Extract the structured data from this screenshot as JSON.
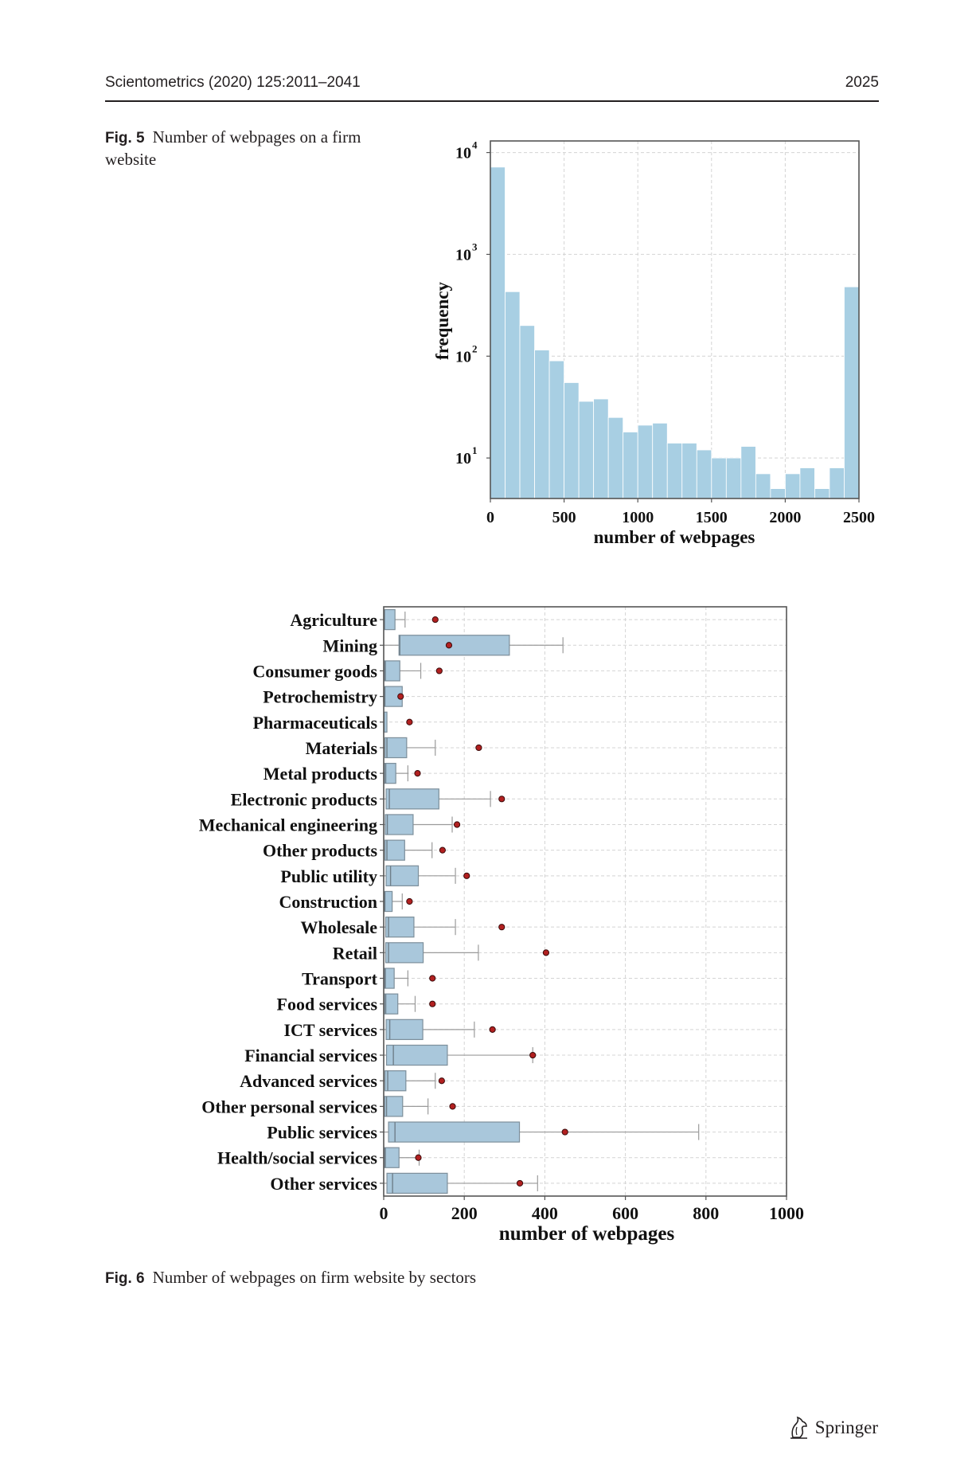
{
  "header": {
    "journal": "Scientometrics (2020) 125:2011–2041",
    "page": "2025"
  },
  "figures": [
    {
      "label": "Fig. 5",
      "caption": "Number of webpages on a firm website",
      "chart_data": {
        "type": "bar",
        "subtype": "histogram",
        "y_scale": "log",
        "bin_width": 100,
        "bins_start": [
          0,
          100,
          200,
          300,
          400,
          500,
          600,
          700,
          800,
          900,
          1000,
          1100,
          1200,
          1300,
          1400,
          1500,
          1600,
          1700,
          1800,
          1900,
          2000,
          2100,
          2200,
          2300,
          2400
        ],
        "values": [
          7200,
          430,
          200,
          115,
          90,
          55,
          36,
          38,
          25,
          18,
          21,
          22,
          14,
          14,
          12,
          10,
          10,
          13,
          7,
          5,
          7,
          8,
          5,
          8,
          480
        ],
        "xlabel": "number of webpages",
        "ylabel": "frequency",
        "xlim": [
          0,
          2500
        ],
        "ylim": [
          4,
          13000
        ],
        "x_ticks": [
          "0",
          "500",
          "1000",
          "1500",
          "2000",
          "2500"
        ],
        "y_ticks": [
          "10^1",
          "10^2",
          "10^3",
          "10^4"
        ],
        "grid": true,
        "bar_color": "#a8cfe3"
      }
    },
    {
      "label": "Fig. 6",
      "caption": "Number of webpages on firm website by sectors",
      "chart_data": {
        "type": "box",
        "orientation": "horizontal",
        "categories": [
          "Agriculture",
          "Mining",
          "Consumer goods",
          "Petrochemistry",
          "Pharmaceuticals",
          "Materials",
          "Metal products",
          "Electronic products",
          "Mechanical engineering",
          "Other products",
          "Public utility",
          "Construction",
          "Wholesale",
          "Retail",
          "Transport",
          "Food services",
          "ICT services",
          "Financial services",
          "Advanced services",
          "Other personal services",
          "Public services",
          "Health/social services",
          "Other services"
        ],
        "boxes": [
          {
            "whisker_low": 0,
            "q1": 1,
            "median": 2,
            "q3": 28,
            "whisker_high": 53,
            "mean": 128
          },
          {
            "whisker_low": 0,
            "q1": 38,
            "median": 40,
            "q3": 312,
            "whisker_high": 445,
            "mean": 162
          },
          {
            "whisker_low": 0,
            "q1": 2,
            "median": 4,
            "q3": 40,
            "whisker_high": 92,
            "mean": 138
          },
          {
            "whisker_low": 0,
            "q1": 1,
            "median": 3,
            "q3": 46,
            "whisker_high": 46,
            "mean": 42
          },
          {
            "whisker_low": 0,
            "q1": 0,
            "median": 1,
            "q3": 8,
            "whisker_high": 8,
            "mean": 64
          },
          {
            "whisker_low": 0,
            "q1": 3,
            "median": 8,
            "q3": 57,
            "whisker_high": 128,
            "mean": 236
          },
          {
            "whisker_low": 0,
            "q1": 2,
            "median": 5,
            "q3": 30,
            "whisker_high": 60,
            "mean": 84
          },
          {
            "whisker_low": 0,
            "q1": 6,
            "median": 14,
            "q3": 137,
            "whisker_high": 265,
            "mean": 293
          },
          {
            "whisker_low": 0,
            "q1": 4,
            "median": 9,
            "q3": 73,
            "whisker_high": 170,
            "mean": 182
          },
          {
            "whisker_low": 0,
            "q1": 3,
            "median": 8,
            "q3": 52,
            "whisker_high": 120,
            "mean": 146
          },
          {
            "whisker_low": 0,
            "q1": 6,
            "median": 17,
            "q3": 86,
            "whisker_high": 178,
            "mean": 206
          },
          {
            "whisker_low": 0,
            "q1": 1,
            "median": 3,
            "q3": 21,
            "whisker_high": 46,
            "mean": 64
          },
          {
            "whisker_low": 0,
            "q1": 5,
            "median": 12,
            "q3": 75,
            "whisker_high": 178,
            "mean": 293
          },
          {
            "whisker_low": 0,
            "q1": 5,
            "median": 12,
            "q3": 98,
            "whisker_high": 235,
            "mean": 403
          },
          {
            "whisker_low": 0,
            "q1": 2,
            "median": 4,
            "q3": 26,
            "whisker_high": 60,
            "mean": 121
          },
          {
            "whisker_low": 0,
            "q1": 2,
            "median": 5,
            "q3": 35,
            "whisker_high": 78,
            "mean": 121
          },
          {
            "whisker_low": 0,
            "q1": 6,
            "median": 15,
            "q3": 97,
            "whisker_high": 225,
            "mean": 270
          },
          {
            "whisker_low": 0,
            "q1": 7,
            "median": 24,
            "q3": 158,
            "whisker_high": 370,
            "mean": 370
          },
          {
            "whisker_low": 0,
            "q1": 3,
            "median": 10,
            "q3": 55,
            "whisker_high": 128,
            "mean": 144
          },
          {
            "whisker_low": 0,
            "q1": 2,
            "median": 7,
            "q3": 47,
            "whisker_high": 110,
            "mean": 171
          },
          {
            "whisker_low": 0,
            "q1": 12,
            "median": 28,
            "q3": 337,
            "whisker_high": 782,
            "mean": 450
          },
          {
            "whisker_low": 0,
            "q1": 2,
            "median": 4,
            "q3": 38,
            "whisker_high": 88,
            "mean": 86
          },
          {
            "whisker_low": 0,
            "q1": 8,
            "median": 22,
            "q3": 158,
            "whisker_high": 382,
            "mean": 338
          }
        ],
        "xlabel": "number of webpages",
        "xlim": [
          0,
          1000
        ],
        "x_ticks": [
          "0",
          "200",
          "400",
          "600",
          "800",
          "1000"
        ],
        "grid": true,
        "box_color": "#a9c7db",
        "mean_marker_color": "#b22020"
      }
    }
  ],
  "footer": {
    "publisher": "Springer"
  }
}
